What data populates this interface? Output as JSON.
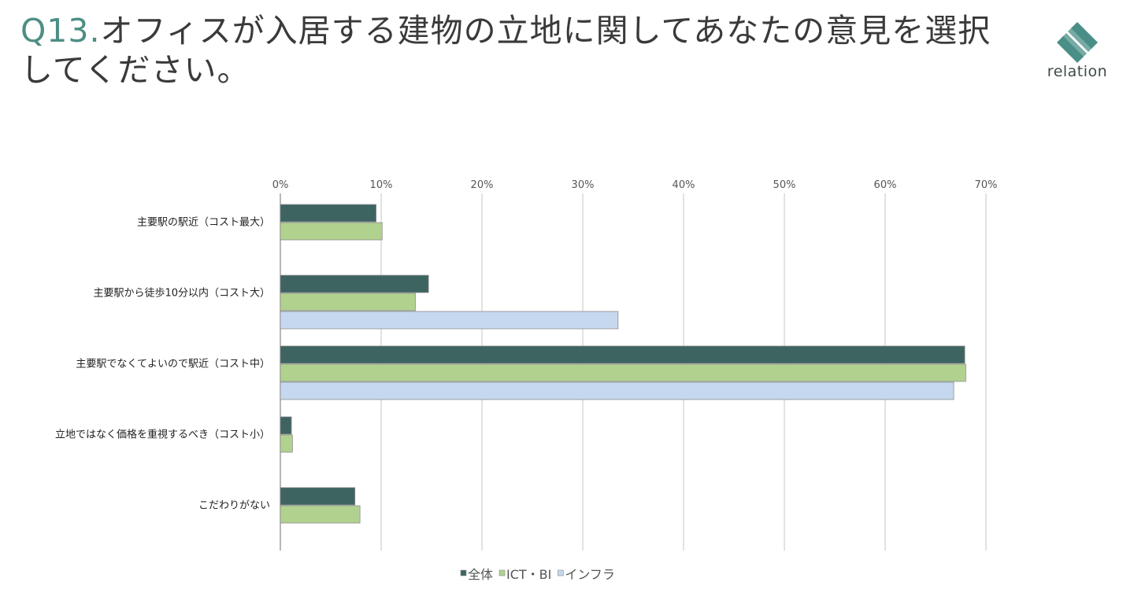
{
  "header": {
    "question_number": "Q13.",
    "question_text": "オフィスが入居する建物の立地に関してあなたの意見を選択してください。"
  },
  "logo": {
    "text": "relation",
    "mark_color": "#4a8f87"
  },
  "chart_data": {
    "type": "bar",
    "orientation": "horizontal",
    "title": "",
    "xlabel": "",
    "ylabel": "",
    "xlim": [
      0,
      70
    ],
    "x_ticks": [
      0,
      10,
      20,
      30,
      40,
      50,
      60,
      70
    ],
    "tick_suffix": "%",
    "axis_position": "top",
    "grid": true,
    "legend_position": "bottom",
    "categories": [
      "主要駅の駅近（コスト最大）",
      "主要駅から徒歩10分以内（コスト大）",
      "主要駅でなくてよいので駅近（コスト中）",
      "立地ではなく価格を重視するべき（コスト小）",
      "こだわりがない"
    ],
    "series": [
      {
        "name": "全体",
        "color": "#3d6460",
        "values": [
          9.5,
          14.7,
          67.9,
          1.1,
          7.4
        ]
      },
      {
        "name": "ICT・BI",
        "color": "#b1d28f",
        "values": [
          10.1,
          13.4,
          68.0,
          1.2,
          7.9
        ]
      },
      {
        "name": "インフラ",
        "color": "#c5d8ef",
        "values": [
          0.0,
          33.5,
          66.8,
          0.0,
          0.0
        ]
      }
    ]
  }
}
